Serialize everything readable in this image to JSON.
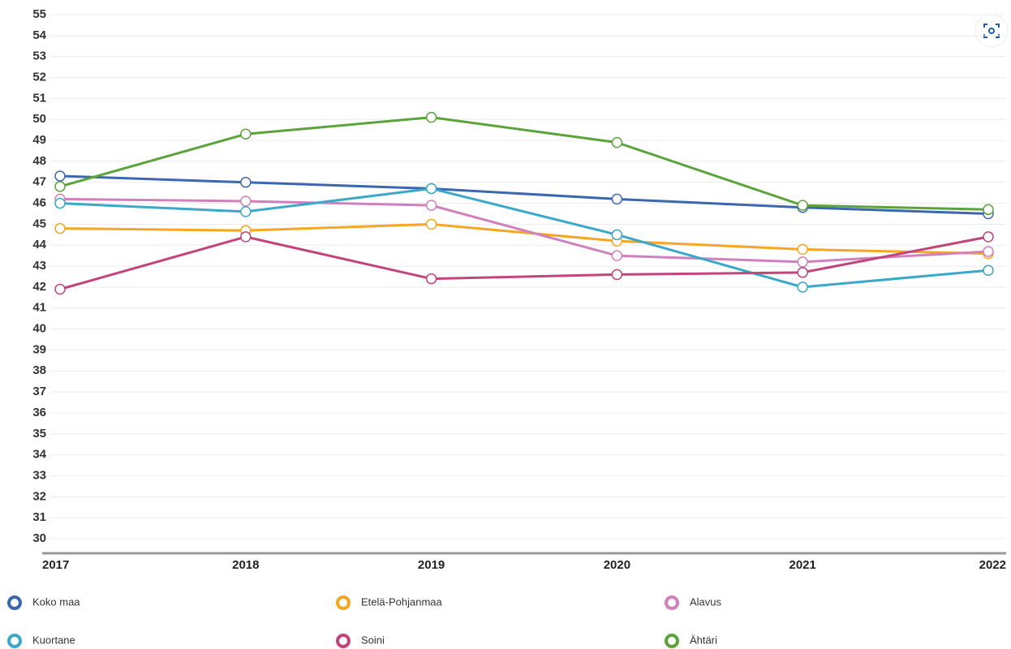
{
  "chart_data": {
    "type": "line",
    "categories": [
      "2017",
      "2018",
      "2019",
      "2020",
      "2021",
      "2022"
    ],
    "series": [
      {
        "name": "Koko maa",
        "color": "#3a67b0",
        "values": [
          47.3,
          47.0,
          46.7,
          46.2,
          45.8,
          45.5
        ]
      },
      {
        "name": "Etelä-Pohjanmaa",
        "color": "#f5a623",
        "values": [
          44.8,
          44.7,
          45.0,
          44.2,
          43.8,
          43.6
        ]
      },
      {
        "name": "Alavus",
        "color": "#d17fbd",
        "values": [
          46.2,
          46.1,
          45.9,
          43.5,
          43.2,
          43.7
        ]
      },
      {
        "name": "Kuortane",
        "color": "#3aa8c9",
        "values": [
          46.0,
          45.6,
          46.7,
          44.5,
          42.0,
          42.8
        ]
      },
      {
        "name": "Soini",
        "color": "#c2447a",
        "values": [
          41.9,
          44.4,
          42.4,
          42.6,
          42.7,
          44.4
        ]
      },
      {
        "name": "Ähtäri",
        "color": "#5ba33b",
        "values": [
          46.8,
          49.3,
          50.1,
          48.9,
          45.9,
          45.7
        ]
      }
    ],
    "ylim": [
      30,
      55
    ],
    "yticks": [
      30,
      31,
      32,
      33,
      34,
      35,
      36,
      37,
      38,
      39,
      40,
      41,
      42,
      43,
      44,
      45,
      46,
      47,
      48,
      49,
      50,
      51,
      52,
      53,
      54,
      55
    ],
    "grid": true
  }
}
